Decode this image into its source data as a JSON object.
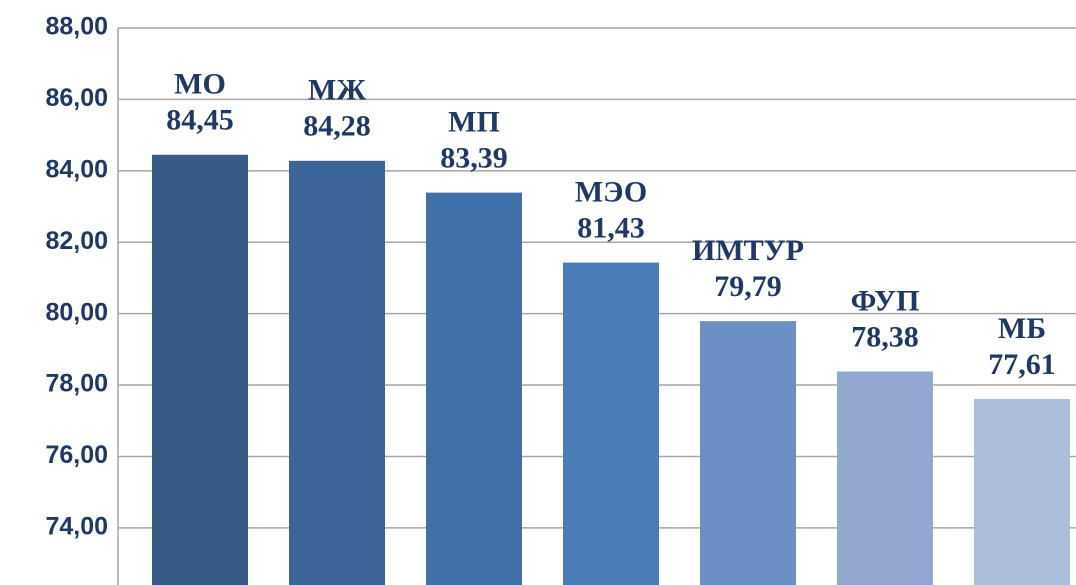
{
  "chart_data": {
    "type": "bar",
    "categories": [
      "МО",
      "МЖ",
      "МП",
      "МЭО",
      "ИМТУР",
      "ФУП",
      "МБ"
    ],
    "values": [
      84.45,
      84.28,
      83.39,
      81.43,
      79.79,
      78.38,
      77.61
    ],
    "value_labels": [
      "84,45",
      "84,28",
      "83,39",
      "81,43",
      "79,79",
      "78,38",
      "77,61"
    ],
    "colors": [
      "#375a87",
      "#3d6499",
      "#416fa8",
      "#4a7cb8",
      "#6b8fc5",
      "#93a8d1",
      "#adbedd"
    ],
    "ylim": [
      72.4,
      88
    ],
    "yticks": [
      {
        "value": 74,
        "label": "74,00"
      },
      {
        "value": 76,
        "label": "76,00"
      },
      {
        "value": 78,
        "label": "78,00"
      },
      {
        "value": 80,
        "label": "80,00"
      },
      {
        "value": 82,
        "label": "82,00"
      },
      {
        "value": 84,
        "label": "84,00"
      },
      {
        "value": 86,
        "label": "86,00"
      },
      {
        "value": 88,
        "label": "88,00"
      }
    ],
    "grid": true
  }
}
